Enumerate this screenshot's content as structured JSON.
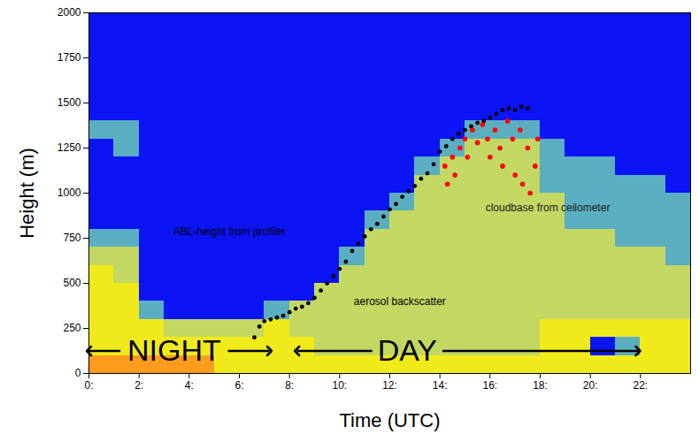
{
  "chart_data": {
    "type": "heatmap",
    "xlabel": "Time (UTC)",
    "ylabel": "Height (m)",
    "xlim": [
      0,
      24
    ],
    "ylim": [
      0,
      2000
    ],
    "xticks": [
      {
        "value": 0,
        "label": "0:"
      },
      {
        "value": 2,
        "label": "2:"
      },
      {
        "value": 4,
        "label": "4:"
      },
      {
        "value": 6,
        "label": "6:"
      },
      {
        "value": 8,
        "label": "8:"
      },
      {
        "value": 10,
        "label": "10:"
      },
      {
        "value": 12,
        "label": "12:"
      },
      {
        "value": 14,
        "label": "14:"
      },
      {
        "value": 16,
        "label": "16:"
      },
      {
        "value": 18,
        "label": "18:"
      },
      {
        "value": 20,
        "label": "20:"
      },
      {
        "value": 22,
        "label": "22:"
      }
    ],
    "yticks": [
      0,
      250,
      500,
      750,
      1000,
      1250,
      1500,
      1750,
      2000
    ],
    "cells": {
      "x": [
        0,
        1,
        2,
        3,
        4,
        5,
        6,
        7,
        8,
        9,
        10,
        11,
        12,
        13,
        14,
        15,
        16,
        17,
        18,
        19,
        20,
        21,
        22,
        23,
        24
      ],
      "y": [
        0,
        100,
        200,
        300,
        400,
        500,
        600,
        700,
        800,
        900,
        1000,
        1100,
        1200,
        1300,
        1400,
        1500,
        1600,
        1700,
        1800,
        1900,
        2000
      ],
      "values": [
        [
          4,
          3,
          3,
          3,
          3,
          3,
          2,
          1,
          0,
          0,
          0,
          0,
          0,
          1,
          0,
          0,
          0,
          0,
          0,
          0
        ],
        [
          4,
          3,
          3,
          3,
          3,
          2,
          2,
          1,
          0,
          0,
          0,
          0,
          1,
          1,
          0,
          0,
          0,
          0,
          0,
          0
        ],
        [
          4,
          3,
          3,
          1,
          0,
          0,
          0,
          0,
          0,
          0,
          0,
          0,
          0,
          0,
          0,
          0,
          0,
          0,
          0,
          0
        ],
        [
          4,
          3,
          2,
          0,
          0,
          0,
          0,
          0,
          0,
          0,
          0,
          0,
          0,
          0,
          0,
          0,
          0,
          0,
          0,
          0
        ],
        [
          4,
          3,
          2,
          0,
          0,
          0,
          0,
          0,
          0,
          0,
          0,
          0,
          0,
          0,
          0,
          0,
          0,
          0,
          0,
          0
        ],
        [
          3,
          3,
          2,
          0,
          0,
          0,
          0,
          0,
          0,
          0,
          0,
          0,
          0,
          0,
          0,
          0,
          0,
          0,
          0,
          0
        ],
        [
          3,
          3,
          2,
          0,
          0,
          0,
          0,
          0,
          0,
          0,
          0,
          0,
          0,
          0,
          0,
          0,
          0,
          0,
          0,
          0
        ],
        [
          3,
          3,
          3,
          1,
          0,
          0,
          0,
          0,
          0,
          0,
          0,
          0,
          0,
          0,
          0,
          0,
          0,
          0,
          0,
          0
        ],
        [
          3,
          3,
          2,
          2,
          0,
          0,
          0,
          0,
          0,
          0,
          0,
          0,
          0,
          0,
          0,
          0,
          0,
          0,
          0,
          0
        ],
        [
          3,
          2,
          2,
          2,
          2,
          0,
          0,
          0,
          0,
          0,
          0,
          0,
          0,
          0,
          0,
          0,
          0,
          0,
          0,
          0
        ],
        [
          3,
          2,
          2,
          2,
          2,
          2,
          1,
          0,
          0,
          0,
          0,
          0,
          0,
          0,
          0,
          0,
          0,
          0,
          0,
          0
        ],
        [
          3,
          2,
          2,
          2,
          2,
          2,
          2,
          2,
          1,
          0,
          0,
          0,
          0,
          0,
          0,
          0,
          0,
          0,
          0,
          0
        ],
        [
          3,
          2,
          2,
          2,
          2,
          2,
          2,
          2,
          2,
          1,
          0,
          0,
          0,
          0,
          0,
          0,
          0,
          0,
          0,
          0
        ],
        [
          3,
          2,
          2,
          2,
          2,
          2,
          2,
          2,
          2,
          2,
          2,
          1,
          0,
          0,
          0,
          0,
          0,
          0,
          0,
          0
        ],
        [
          3,
          2,
          2,
          2,
          2,
          2,
          2,
          2,
          2,
          2,
          2,
          2,
          1,
          0,
          0,
          0,
          0,
          0,
          0,
          0
        ],
        [
          3,
          2,
          2,
          2,
          2,
          2,
          2,
          2,
          2,
          2,
          2,
          2,
          2,
          1,
          0,
          0,
          0,
          0,
          0,
          0
        ],
        [
          3,
          2,
          2,
          2,
          2,
          2,
          2,
          2,
          2,
          2,
          2,
          2,
          2,
          1,
          0,
          0,
          0,
          0,
          0,
          0
        ],
        [
          3,
          2,
          2,
          2,
          2,
          2,
          2,
          2,
          2,
          2,
          2,
          2,
          2,
          1,
          0,
          0,
          0,
          0,
          0,
          0
        ],
        [
          3,
          3,
          3,
          2,
          2,
          2,
          2,
          2,
          2,
          2,
          1,
          1,
          1,
          0,
          0,
          0,
          0,
          0,
          0,
          0
        ],
        [
          3,
          3,
          3,
          2,
          2,
          2,
          2,
          2,
          1,
          1,
          1,
          1,
          0,
          0,
          0,
          0,
          0,
          0,
          0,
          0
        ],
        [
          3,
          0,
          3,
          2,
          2,
          2,
          2,
          2,
          1,
          1,
          1,
          1,
          0,
          0,
          0,
          0,
          0,
          0,
          0,
          0
        ],
        [
          3,
          1,
          3,
          2,
          2,
          2,
          2,
          1,
          1,
          1,
          1,
          0,
          0,
          0,
          0,
          0,
          0,
          0,
          0,
          0
        ],
        [
          3,
          3,
          3,
          2,
          2,
          2,
          2,
          1,
          1,
          1,
          1,
          0,
          0,
          0,
          0,
          0,
          0,
          0,
          0,
          0
        ],
        [
          3,
          3,
          3,
          2,
          2,
          2,
          1,
          1,
          1,
          1,
          0,
          0,
          0,
          0,
          0,
          0,
          0,
          0,
          0,
          0
        ]
      ]
    },
    "series": [
      {
        "name": "ABL-height from profiler",
        "type": "scatter",
        "color": "#000000",
        "marker": "circle",
        "label_x": 5.6,
        "label_y": 785,
        "x": [
          6.6,
          6.8,
          7.0,
          7.25,
          7.5,
          7.75,
          8.0,
          8.25,
          8.5,
          8.75,
          9.0,
          9.25,
          9.5,
          9.75,
          10.0,
          10.25,
          10.5,
          10.75,
          11.0,
          11.25,
          11.5,
          11.75,
          12.0,
          12.25,
          12.5,
          12.75,
          13.0,
          13.25,
          13.5,
          13.75,
          14.0,
          14.25,
          14.5,
          14.75,
          15.0,
          15.25,
          15.5,
          15.75,
          16.0,
          16.25,
          16.5,
          16.75,
          17.0,
          17.25,
          17.5
        ],
        "values": [
          200,
          260,
          290,
          300,
          310,
          320,
          340,
          360,
          370,
          390,
          420,
          460,
          500,
          540,
          580,
          620,
          680,
          720,
          760,
          800,
          830,
          870,
          910,
          940,
          980,
          1010,
          1040,
          1080,
          1110,
          1160,
          1230,
          1260,
          1300,
          1330,
          1350,
          1370,
          1390,
          1400,
          1420,
          1440,
          1460,
          1470,
          1460,
          1480,
          1470
        ]
      },
      {
        "name": "cloudbase from ceilometer",
        "type": "scatter",
        "color": "#ff0000",
        "marker": "circle",
        "label_x": 18.3,
        "label_y": 920,
        "x": [
          14.2,
          14.3,
          14.5,
          14.6,
          14.8,
          15.0,
          15.1,
          15.3,
          15.5,
          15.7,
          15.9,
          16.0,
          16.2,
          16.4,
          16.5,
          16.7,
          16.9,
          17.0,
          17.2,
          17.3,
          17.5,
          17.6,
          17.8,
          17.9
        ],
        "values": [
          1150,
          1050,
          1200,
          1100,
          1250,
          1300,
          1200,
          1350,
          1280,
          1380,
          1300,
          1200,
          1350,
          1250,
          1150,
          1400,
          1300,
          1100,
          1350,
          1050,
          1250,
          1000,
          1150,
          1300
        ]
      }
    ],
    "annotations": [
      {
        "text": "aerosol backscatter",
        "x": 12.4,
        "y": 400
      },
      {
        "text": "NIGHT",
        "x": 3.4,
        "y": 125,
        "arrow": [
          0,
          7.2
        ]
      },
      {
        "text": "DAY",
        "x": 12.7,
        "y": 125,
        "arrow": [
          8.3,
          21.9
        ]
      }
    ]
  }
}
